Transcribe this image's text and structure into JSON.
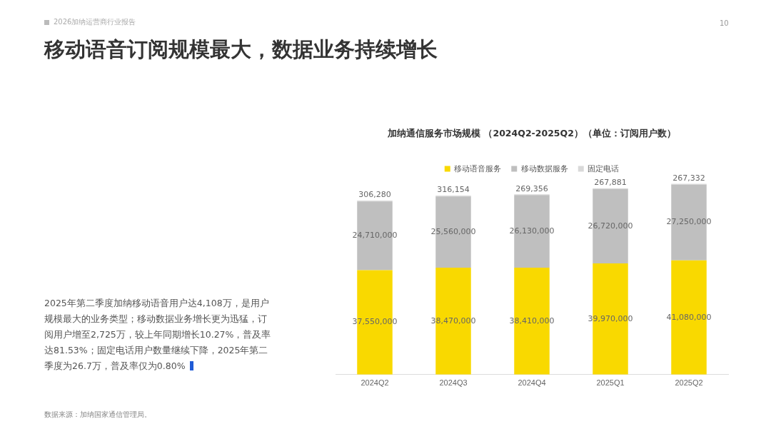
{
  "chart_data": {
    "type": "bar",
    "stacked": true,
    "title": "加纳通信服务市场规模 （2024Q2-2025Q2）（单位：订阅用户数）",
    "categories": [
      "2024Q2",
      "2024Q3",
      "2024Q4",
      "2025Q1",
      "2025Q2"
    ],
    "series": [
      {
        "name": "移动语音服务",
        "color": "#f9d900",
        "values": [
          37550000,
          38470000,
          38410000,
          39970000,
          41080000
        ],
        "value_labels": [
          "37,550,000",
          "38,470,000",
          "38,410,000",
          "39,970,000",
          "41,080,000"
        ]
      },
      {
        "name": "移动数据服务",
        "color": "#bfbfbf",
        "values": [
          24710000,
          25560000,
          26130000,
          26720000,
          27250000
        ],
        "value_labels": [
          "24,710,000",
          "25,560,000",
          "26,130,000",
          "26,720,000",
          "27,250,000"
        ]
      },
      {
        "name": "固定电话",
        "color": "#d9d9d9",
        "values": [
          306280,
          316154,
          269356,
          267881,
          267332
        ],
        "value_labels": [
          "306,280",
          "316,154",
          "269,356",
          "267,881",
          "267,332"
        ]
      }
    ],
    "legend": "top",
    "grid": false,
    "annotations": [
      "2026加纳运营商行业报告",
      "10",
      "移动语音订阅规模最大，数据业务持续增长",
      "2025年第二季度加纳移动语音用户达4,108万，是用户规模最大的业务类型；移动数据业务增长更为迅猛，订阅用户增至2,725万，较上年同期增长10.27%，普及率达81.53%；固定电话用户数量继续下降，2025年第二季度为26.7万，普及率仅为0.80%",
      "数据来源：加纳国家通信管理局。"
    ]
  }
}
